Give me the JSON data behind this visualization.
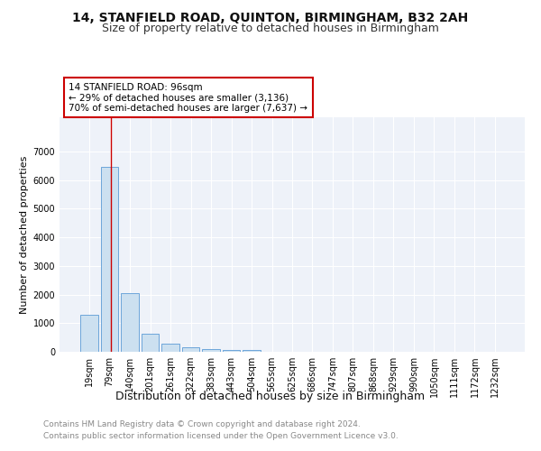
{
  "title": "14, STANFIELD ROAD, QUINTON, BIRMINGHAM, B32 2AH",
  "subtitle": "Size of property relative to detached houses in Birmingham",
  "xlabel": "Distribution of detached houses by size in Birmingham",
  "ylabel": "Number of detached properties",
  "footnote1": "Contains HM Land Registry data © Crown copyright and database right 2024.",
  "footnote2": "Contains public sector information licensed under the Open Government Licence v3.0.",
  "categories": [
    "19sqm",
    "79sqm",
    "140sqm",
    "201sqm",
    "261sqm",
    "322sqm",
    "383sqm",
    "443sqm",
    "504sqm",
    "565sqm",
    "625sqm",
    "686sqm",
    "747sqm",
    "807sqm",
    "868sqm",
    "929sqm",
    "990sqm",
    "1050sqm",
    "1111sqm",
    "1172sqm",
    "1232sqm"
  ],
  "values": [
    1280,
    6480,
    2050,
    620,
    270,
    145,
    90,
    62,
    60,
    5,
    5,
    0,
    0,
    0,
    0,
    0,
    0,
    0,
    0,
    0,
    0
  ],
  "bar_color": "#cce0f0",
  "bar_edgecolor": "#5b9bd5",
  "vline_color": "#cc0000",
  "vline_pos": 1.07,
  "annotation_text": "14 STANFIELD ROAD: 96sqm\n← 29% of detached houses are smaller (3,136)\n70% of semi-detached houses are larger (7,637) →",
  "annotation_box_color": "#ffffff",
  "annotation_box_edgecolor": "#cc0000",
  "ylim": [
    0,
    8200
  ],
  "yticks": [
    0,
    1000,
    2000,
    3000,
    4000,
    5000,
    6000,
    7000
  ],
  "bg_color": "#eef2f9",
  "grid_color": "#ffffff",
  "title_fontsize": 10,
  "subtitle_fontsize": 9,
  "xlabel_fontsize": 9,
  "ylabel_fontsize": 8,
  "tick_fontsize": 7,
  "annotation_fontsize": 7.5,
  "footnote_fontsize": 6.5
}
